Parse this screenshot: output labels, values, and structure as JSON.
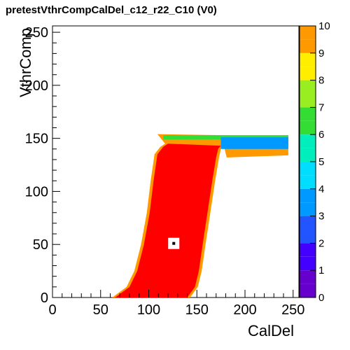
{
  "chart_data": {
    "type": "heatmap",
    "title": "pretestVthrCompCalDel_c12_r22_C10 (V0)",
    "xlabel": "CalDel",
    "ylabel": "VthrComp",
    "xlim": [
      0,
      256
    ],
    "ylim": [
      0,
      256
    ],
    "x_ticks": [
      0,
      50,
      100,
      150,
      200,
      250
    ],
    "y_ticks": [
      0,
      50,
      100,
      150,
      200,
      250
    ],
    "zlim": [
      0,
      10
    ],
    "z_ticks": [
      0,
      1,
      2,
      3,
      4,
      5,
      6,
      7,
      8,
      9,
      10
    ],
    "colormap": [
      "#6600cc",
      "#4400ff",
      "#2255ff",
      "#0099ff",
      "#00ddff",
      "#00eebb",
      "#33dd33",
      "#99ee22",
      "#ffee00",
      "#ff9900",
      "#ff2200"
    ],
    "saturated_color": "#ff0000",
    "region": {
      "description": "saturated band (value 10)",
      "left_edge": [
        [
          65,
          0
        ],
        [
          80,
          10
        ],
        [
          88,
          25
        ],
        [
          95,
          50
        ],
        [
          101,
          80
        ],
        [
          105,
          110
        ],
        [
          109,
          135
        ],
        [
          115,
          142
        ],
        [
          120,
          145
        ]
      ],
      "right_edge": [
        [
          140,
          0
        ],
        [
          148,
          10
        ],
        [
          152,
          25
        ],
        [
          156,
          50
        ],
        [
          161,
          80
        ],
        [
          166,
          110
        ],
        [
          170,
          132
        ],
        [
          172,
          140
        ],
        [
          175,
          143
        ]
      ],
      "top_plateau": {
        "x_from": 115,
        "x_to": 245,
        "y_from": 138,
        "y_to": 150
      }
    },
    "marker": {
      "x": 126,
      "y": 51,
      "label": "selected point"
    }
  }
}
